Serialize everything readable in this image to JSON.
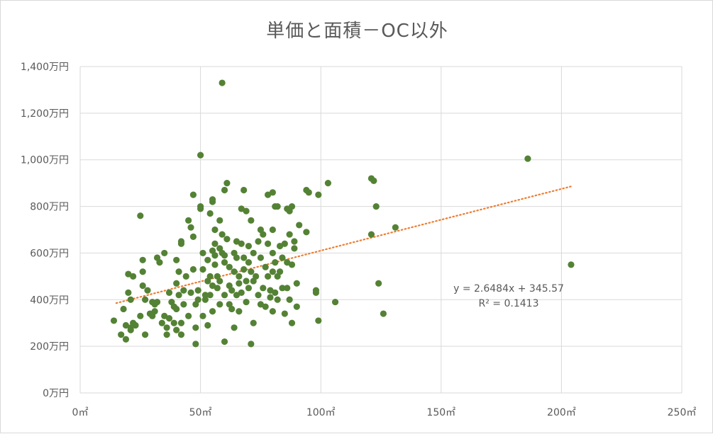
{
  "chart_data": {
    "type": "scatter",
    "title": "単価と面積－OC以外",
    "xlim": [
      0,
      250
    ],
    "ylim": [
      0,
      1400
    ],
    "x_ticks": [
      0,
      50,
      100,
      150,
      200,
      250
    ],
    "x_tick_labels": [
      "0㎡",
      "50㎡",
      "100㎡",
      "150㎡",
      "200㎡",
      "250㎡"
    ],
    "y_ticks": [
      0,
      200,
      400,
      600,
      800,
      1000,
      1200,
      1400
    ],
    "y_tick_labels": [
      "0万円",
      "200万円",
      "400万円",
      "600万円",
      "800万円",
      "1,000万円",
      "1,200万円",
      "1,400万円"
    ],
    "grid": true,
    "marker_color": "#548235",
    "trendline": {
      "type": "linear",
      "slope": 2.6484,
      "intercept": 345.57,
      "x_range": [
        15,
        204
      ],
      "color": "#ed7d31",
      "equation_label": "y = 2.6484x + 345.57",
      "r2_label": "R² = 0.1413"
    },
    "points": [
      [
        14,
        310
      ],
      [
        17,
        250
      ],
      [
        18,
        360
      ],
      [
        19,
        230
      ],
      [
        19,
        290
      ],
      [
        20,
        430
      ],
      [
        20,
        510
      ],
      [
        21,
        270
      ],
      [
        21,
        280
      ],
      [
        21,
        400
      ],
      [
        22,
        300
      ],
      [
        22,
        500
      ],
      [
        23,
        290
      ],
      [
        25,
        760
      ],
      [
        25,
        330
      ],
      [
        26,
        570
      ],
      [
        26,
        520
      ],
      [
        26,
        460
      ],
      [
        27,
        400
      ],
      [
        27,
        250
      ],
      [
        28,
        440
      ],
      [
        29,
        340
      ],
      [
        30,
        330
      ],
      [
        30,
        390
      ],
      [
        31,
        350
      ],
      [
        31,
        380
      ],
      [
        32,
        580
      ],
      [
        32,
        390
      ],
      [
        33,
        560
      ],
      [
        34,
        300
      ],
      [
        35,
        600
      ],
      [
        35,
        330
      ],
      [
        36,
        250
      ],
      [
        36,
        280
      ],
      [
        37,
        320
      ],
      [
        37,
        430
      ],
      [
        38,
        390
      ],
      [
        39,
        300
      ],
      [
        39,
        370
      ],
      [
        40,
        570
      ],
      [
        40,
        270
      ],
      [
        40,
        470
      ],
      [
        40,
        360
      ],
      [
        41,
        420
      ],
      [
        41,
        520
      ],
      [
        42,
        640
      ],
      [
        42,
        650
      ],
      [
        42,
        250
      ],
      [
        42,
        300
      ],
      [
        43,
        380
      ],
      [
        43,
        440
      ],
      [
        44,
        500
      ],
      [
        45,
        740
      ],
      [
        45,
        330
      ],
      [
        46,
        710
      ],
      [
        46,
        430
      ],
      [
        47,
        850
      ],
      [
        47,
        670
      ],
      [
        47,
        530
      ],
      [
        48,
        380
      ],
      [
        48,
        280
      ],
      [
        48,
        210
      ],
      [
        49,
        440
      ],
      [
        49,
        400
      ],
      [
        50,
        1020
      ],
      [
        50,
        800
      ],
      [
        50,
        790
      ],
      [
        51,
        600
      ],
      [
        51,
        530
      ],
      [
        51,
        330
      ],
      [
        52,
        400
      ],
      [
        52,
        420
      ],
      [
        53,
        480
      ],
      [
        53,
        570
      ],
      [
        53,
        290
      ],
      [
        54,
        770
      ],
      [
        54,
        500
      ],
      [
        54,
        420
      ],
      [
        55,
        820
      ],
      [
        55,
        830
      ],
      [
        55,
        610
      ],
      [
        55,
        460
      ],
      [
        55,
        350
      ],
      [
        56,
        700
      ],
      [
        56,
        640
      ],
      [
        56,
        590
      ],
      [
        56,
        550
      ],
      [
        57,
        500
      ],
      [
        57,
        450
      ],
      [
        58,
        740
      ],
      [
        58,
        620
      ],
      [
        58,
        480
      ],
      [
        58,
        380
      ],
      [
        59,
        1330
      ],
      [
        59,
        680
      ],
      [
        59,
        600
      ],
      [
        60,
        870
      ],
      [
        60,
        590
      ],
      [
        60,
        560
      ],
      [
        60,
        420
      ],
      [
        60,
        220
      ],
      [
        61,
        900
      ],
      [
        61,
        660
      ],
      [
        62,
        540
      ],
      [
        62,
        460
      ],
      [
        62,
        380
      ],
      [
        63,
        440
      ],
      [
        63,
        360
      ],
      [
        64,
        600
      ],
      [
        64,
        520
      ],
      [
        64,
        280
      ],
      [
        65,
        650
      ],
      [
        65,
        580
      ],
      [
        65,
        420
      ],
      [
        66,
        500
      ],
      [
        66,
        470
      ],
      [
        66,
        350
      ],
      [
        67,
        790
      ],
      [
        67,
        640
      ],
      [
        67,
        430
      ],
      [
        68,
        870
      ],
      [
        68,
        580
      ],
      [
        68,
        530
      ],
      [
        69,
        780
      ],
      [
        69,
        480
      ],
      [
        69,
        390
      ],
      [
        70,
        630
      ],
      [
        70,
        560
      ],
      [
        70,
        450
      ],
      [
        71,
        740
      ],
      [
        71,
        520
      ],
      [
        71,
        210
      ],
      [
        72,
        600
      ],
      [
        72,
        480
      ],
      [
        72,
        300
      ],
      [
        73,
        500
      ],
      [
        74,
        650
      ],
      [
        74,
        420
      ],
      [
        75,
        700
      ],
      [
        75,
        580
      ],
      [
        75,
        380
      ],
      [
        76,
        680
      ],
      [
        76,
        450
      ],
      [
        77,
        540
      ],
      [
        77,
        370
      ],
      [
        78,
        850
      ],
      [
        78,
        640
      ],
      [
        78,
        500
      ],
      [
        79,
        440
      ],
      [
        79,
        410
      ],
      [
        80,
        860
      ],
      [
        80,
        700
      ],
      [
        80,
        600
      ],
      [
        80,
        520
      ],
      [
        80,
        350
      ],
      [
        81,
        800
      ],
      [
        81,
        560
      ],
      [
        81,
        430
      ],
      [
        82,
        800
      ],
      [
        82,
        500
      ],
      [
        82,
        400
      ],
      [
        83,
        630
      ],
      [
        83,
        520
      ],
      [
        84,
        580
      ],
      [
        84,
        450
      ],
      [
        85,
        640
      ],
      [
        85,
        340
      ],
      [
        86,
        790
      ],
      [
        86,
        560
      ],
      [
        86,
        450
      ],
      [
        87,
        780
      ],
      [
        87,
        680
      ],
      [
        87,
        400
      ],
      [
        88,
        800
      ],
      [
        88,
        550
      ],
      [
        88,
        300
      ],
      [
        89,
        650
      ],
      [
        89,
        620
      ],
      [
        90,
        470
      ],
      [
        90,
        370
      ],
      [
        91,
        720
      ],
      [
        94,
        690
      ],
      [
        94,
        870
      ],
      [
        95,
        860
      ],
      [
        98,
        440
      ],
      [
        98,
        430
      ],
      [
        99,
        850
      ],
      [
        99,
        310
      ],
      [
        103,
        900
      ],
      [
        106,
        390
      ],
      [
        121,
        920
      ],
      [
        121,
        680
      ],
      [
        122,
        910
      ],
      [
        123,
        800
      ],
      [
        124,
        470
      ],
      [
        126,
        340
      ],
      [
        131,
        710
      ],
      [
        186,
        1005
      ],
      [
        204,
        550
      ]
    ]
  }
}
